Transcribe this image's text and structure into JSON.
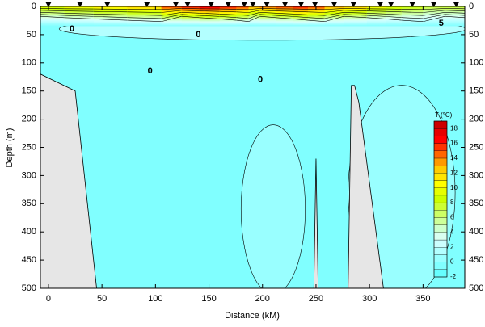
{
  "chart_data": {
    "type": "contour",
    "xlabel": "Distance (kM)",
    "ylabel": "Depth (m)",
    "xlim": [
      -7.5,
      389
    ],
    "ylim": [
      500,
      0
    ],
    "xticks": [
      0,
      50,
      100,
      150,
      200,
      250,
      300,
      350
    ],
    "yticks": [
      0,
      50,
      100,
      150,
      200,
      250,
      300,
      350,
      400,
      450,
      500
    ],
    "colorbar_title": "T (°C)",
    "clim": [
      -2,
      19
    ],
    "cticks": [
      -2,
      0,
      2,
      4,
      6,
      8,
      10,
      12,
      14,
      16,
      18
    ],
    "cmap": [
      "#66ffff",
      "#80ffff",
      "#99ffff",
      "#b3ffff",
      "#ccffff",
      "#d9fff0",
      "#ccffcc",
      "#ccff99",
      "#ccff66",
      "#ccff33",
      "#ccff00",
      "#e6ff00",
      "#ffff00",
      "#ffe600",
      "#ffcc00",
      "#ff9900",
      "#ff6600",
      "#ff3300",
      "#ff0000",
      "#e60000",
      "#cc0000"
    ],
    "stations": [
      0,
      29.5,
      55,
      92,
      119,
      130,
      152,
      168,
      183,
      191,
      204,
      221,
      236,
      249,
      267,
      285,
      310,
      320,
      340,
      360,
      381
    ],
    "field": {
      "base": -1,
      "surface_depth": 35,
      "surface": {
        "x": [
          0,
          29.5,
          55,
          92,
          119,
          130,
          152,
          168,
          183,
          191,
          204,
          221,
          236,
          249,
          267,
          285,
          310,
          320,
          340,
          360,
          381
        ],
        "t": [
          9,
          10,
          11,
          12,
          15,
          16,
          17,
          16,
          15,
          13,
          14,
          15,
          16,
          15,
          13,
          12,
          10,
          9,
          8,
          7,
          7
        ]
      },
      "patches": [
        {
          "t": 0,
          "cx": 330,
          "cy": 330,
          "rx": 50,
          "ry": 190
        },
        {
          "t": 0,
          "cx": 210,
          "cy": 360,
          "rx": 30,
          "ry": 150
        },
        {
          "t": 1,
          "cx": 200,
          "cy": 40,
          "rx": 190,
          "ry": 20
        }
      ]
    },
    "contour_labels": [
      {
        "value": 0,
        "x": 22,
        "y": 40
      },
      {
        "value": 0,
        "x": 140,
        "y": 50
      },
      {
        "value": 0,
        "x": 95,
        "y": 115
      },
      {
        "value": 0,
        "x": 198,
        "y": 130
      },
      {
        "value": 5,
        "x": 367,
        "y": 30
      }
    ],
    "bathymetry": [
      {
        "x": [
          -7.5,
          25,
          45,
          -7.5
        ],
        "y": [
          120,
          150,
          500,
          500
        ]
      },
      {
        "x": [
          248,
          250,
          252
        ],
        "y": [
          500,
          270,
          500
        ]
      },
      {
        "x": [
          280,
          283,
          286,
          290,
          313,
          280
        ],
        "y": [
          500,
          140,
          140,
          170,
          500,
          500
        ]
      }
    ]
  }
}
